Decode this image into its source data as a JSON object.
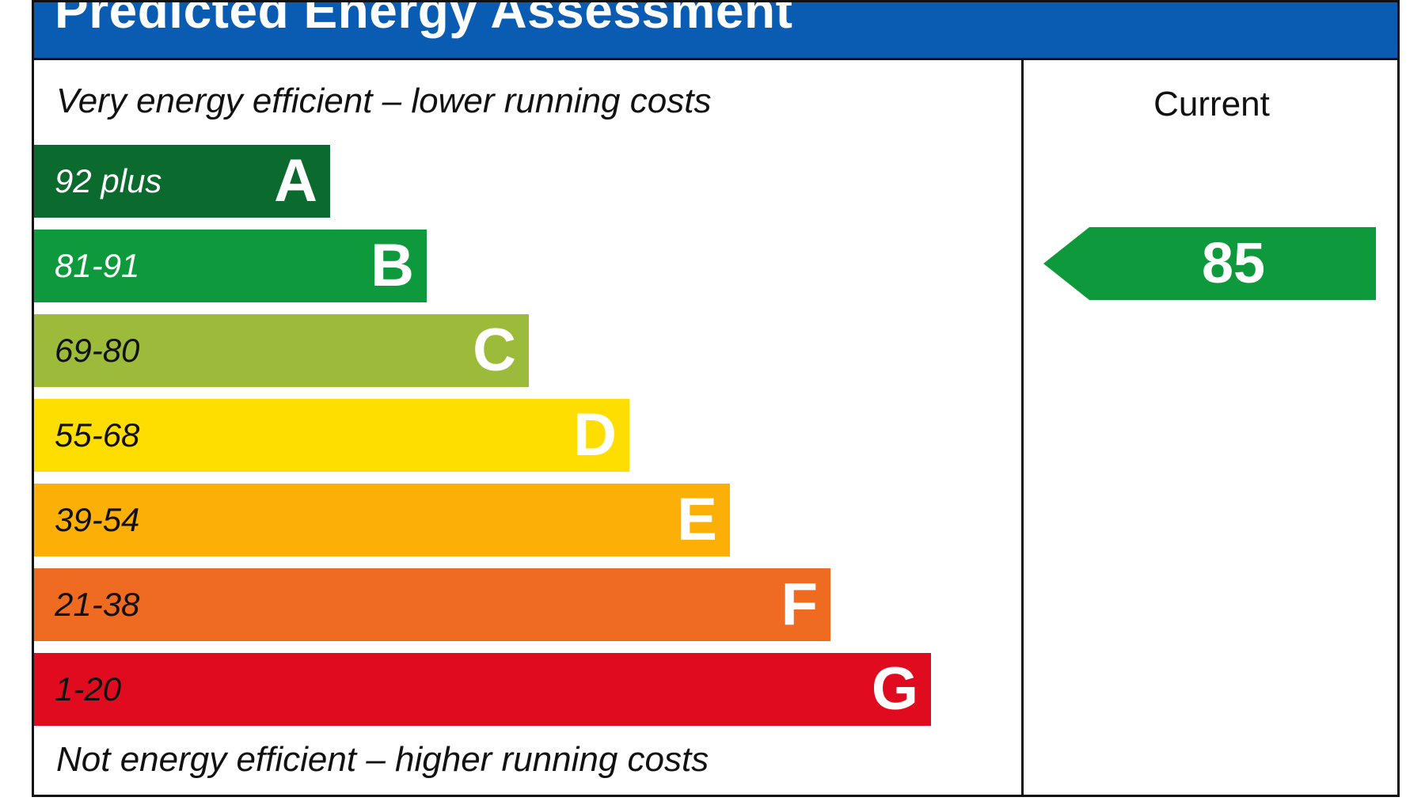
{
  "title": "Predicted Energy Assessment",
  "top_caption": "Very energy efficient – lower running costs",
  "bottom_caption": "Not energy efficient – higher running costs",
  "column_header": "Current",
  "chart_data": {
    "type": "bar",
    "title": "Predicted Energy Assessment",
    "categories": [
      "A",
      "B",
      "C",
      "D",
      "E",
      "F",
      "G"
    ],
    "ranges": [
      "92 plus",
      "81-91",
      "69-80",
      "55-68",
      "39-54",
      "21-38",
      "1-20"
    ],
    "colors": [
      "#0b6b2f",
      "#0e9a3c",
      "#9dbb3a",
      "#fedd00",
      "#fbaf07",
      "#ef6b21",
      "#e10b20"
    ],
    "range_text_colors": [
      "#ffffff",
      "#ffffff",
      "#111111",
      "#111111",
      "#111111",
      "#111111",
      "#111111"
    ],
    "current": {
      "value": "85",
      "band": "B",
      "color": "#0e9a3c"
    }
  }
}
